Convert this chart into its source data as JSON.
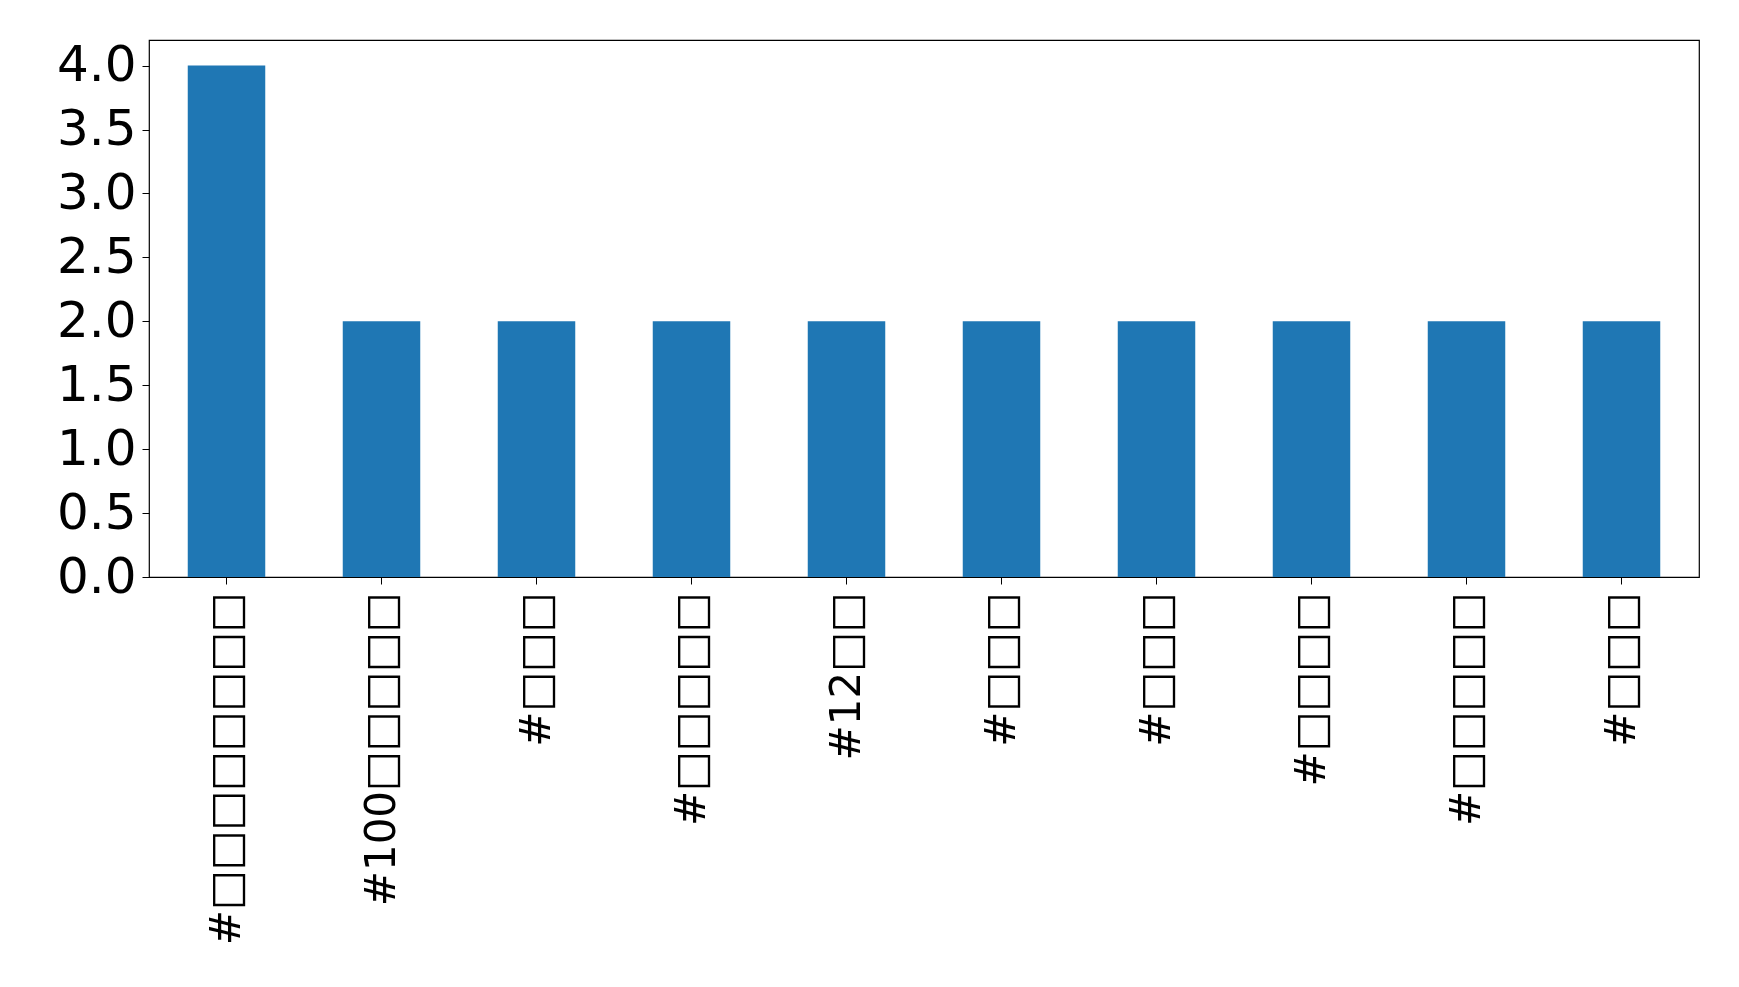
{
  "chart_data": {
    "type": "bar",
    "categories": [
      "#□□□□□□□□",
      "#100□□□□□",
      "#□□□",
      "#□□□□□",
      "#12□□",
      "#□□□",
      "#□□□",
      "#□□□□",
      "#□□□□□",
      "#□□□"
    ],
    "values": [
      4,
      2,
      2,
      2,
      2,
      2,
      2,
      2,
      2,
      2
    ],
    "color": "#1f77b4",
    "ylim": [
      0,
      4.2
    ],
    "yticks": [
      {
        "value": 0,
        "label": "0.0"
      },
      0.5,
      {
        "value": 1,
        "label": "1.0"
      },
      1.5,
      {
        "value": 2,
        "label": "2.0"
      },
      2.5,
      {
        "value": 3,
        "label": "3.0"
      },
      3.5,
      {
        "value": 4,
        "label": "4.0"
      }
    ],
    "grid": false
  }
}
